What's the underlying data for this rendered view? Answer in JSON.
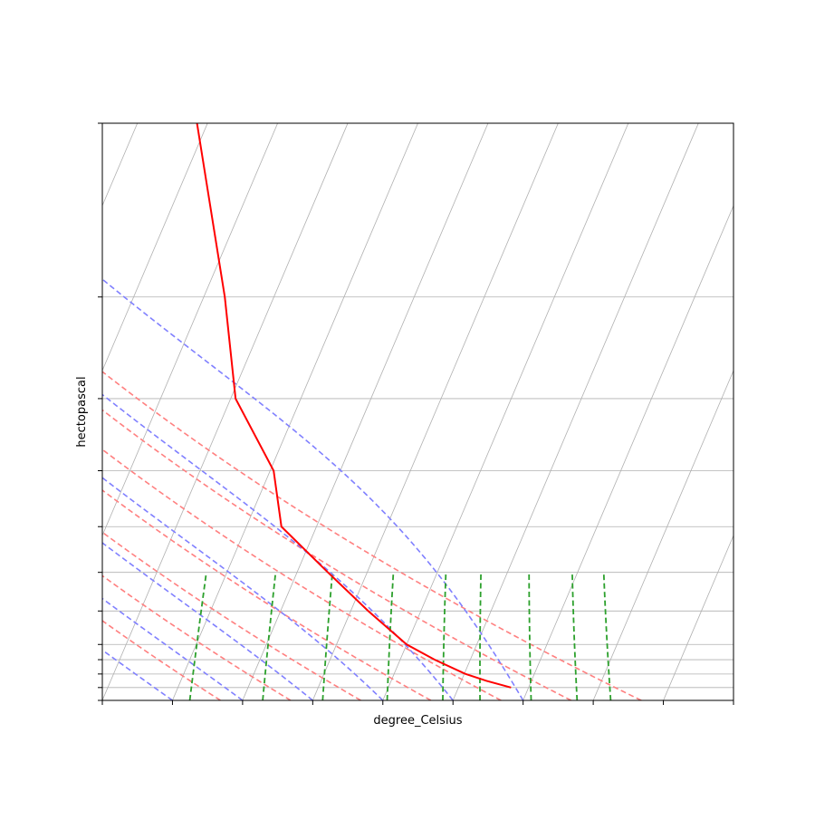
{
  "chart_data": {
    "type": "line",
    "title": "",
    "xlabel": "degree_Celsius",
    "ylabel": "hectopascal",
    "xlim": [
      -40,
      50
    ],
    "ylim": [
      1000,
      100
    ],
    "y_scale": "log",
    "skew": 35,
    "grid": true,
    "x_ticks": [
      -40,
      -30,
      -20,
      -10,
      0,
      10,
      20,
      30,
      40,
      50
    ],
    "y_ticks": [
      1000,
      950,
      900,
      850,
      800,
      700,
      600,
      500,
      400,
      300,
      200,
      100
    ],
    "tick_labels_visible": false,
    "colors": {
      "temperature": "#ff0000",
      "dry_adiabats": "#ff8080",
      "moist_adiabats": "#8080ff",
      "mixing_ratio": "#2ca02c",
      "isotherms": "#b0b0b0"
    },
    "series": [
      {
        "style": "solid",
        "color": "#ff0000",
        "pressure": [
          950,
          925,
          900,
          850,
          800,
          700,
          600,
          500,
          400,
          300,
          200,
          100
        ],
        "temperature": [
          17.5,
          13.6,
          10.2,
          4.9,
          0.0,
          -7.5,
          -15.6,
          -25.0,
          -29.5,
          -39.3,
          -47.0,
          -61.5
        ]
      }
    ],
    "dry_adiabats_theta_K": [
      250,
      260,
      270,
      280,
      290,
      300,
      310
    ],
    "dry_adiabats_pressure_range": [
      1000,
      100
    ],
    "moist_adiabats_start_C": [
      -30,
      -20,
      -10,
      0,
      10,
      20
    ],
    "moist_adiabats_pressure_range": [
      1000,
      100
    ],
    "mixing_ratios_g_per_kg": [
      0.4,
      1,
      2,
      4,
      7,
      10,
      16,
      24,
      32
    ],
    "mixing_ratio_pressure_range": [
      1000,
      600
    ]
  }
}
